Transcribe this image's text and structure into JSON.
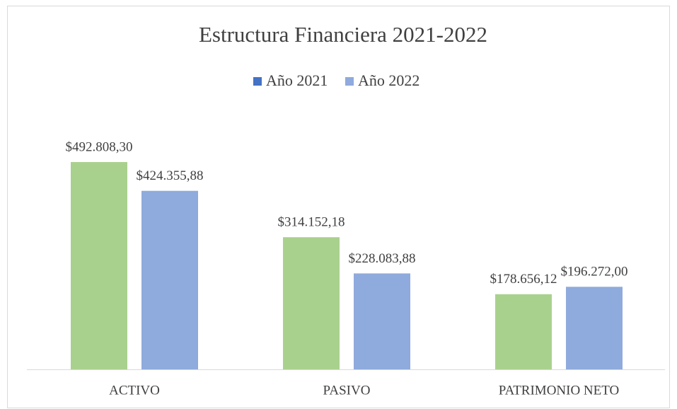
{
  "chart_data": {
    "type": "bar",
    "title": "Estructura Financiera 2021-2022",
    "categories": [
      "ACTIVO",
      "PASIVO",
      "PATRIMONIO NETO"
    ],
    "series": [
      {
        "name": "Año 2021",
        "color": "#a9d18e",
        "legend_color": "#4472c4",
        "values": [
          492808.3,
          314152.18,
          178656.12
        ],
        "value_labels": [
          "$492.808,30",
          "$314.152,18",
          "$178.656,12"
        ]
      },
      {
        "name": "Año 2022",
        "color": "#8faadc",
        "legend_color": "#8faadc",
        "values": [
          424355.88,
          228083.88,
          196272.0
        ],
        "value_labels": [
          "$424.355,88",
          "$228.083,88",
          "$196.272,00"
        ]
      }
    ],
    "ylim": [
      0,
      550000
    ],
    "legend": "top"
  }
}
